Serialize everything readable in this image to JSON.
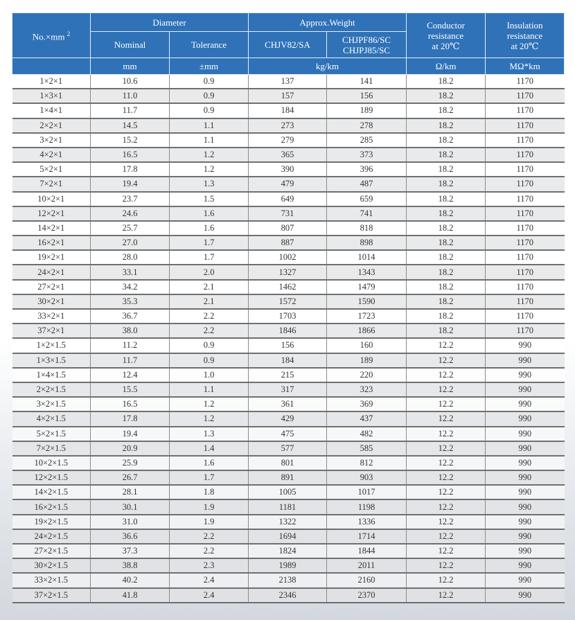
{
  "header": {
    "col_no": "No.×mm",
    "col_no_sup": "2",
    "diameter": "Diameter",
    "nominal": "Nominal",
    "tolerance": "Tolerance",
    "weight": "Approx.Weight",
    "weight_a": "CHJV82/SA",
    "weight_b_1": "CHJPF86/SC",
    "weight_b_2": "CHJPJ85/SC",
    "conductor_1": "Conductor",
    "conductor_2": "resistance",
    "conductor_3": "at 20℃",
    "insulation_1": "Insulation",
    "insulation_2": "resistance",
    "insulation_3": "at 20℃",
    "unit_nominal": "mm",
    "unit_tolerance": "±mm",
    "unit_weight": "kg/km",
    "unit_conductor": "Ω/km",
    "unit_insulation": "MΩ*km"
  },
  "colors": {
    "header_bg": "#2f72b8",
    "alt_row": "#e1e3e6"
  },
  "rows": [
    [
      "1×2×1",
      "10.6",
      "0.9",
      "137",
      "141",
      "18.2",
      "1170"
    ],
    [
      "1×3×1",
      "11.0",
      "0.9",
      "157",
      "156",
      "18.2",
      "1170"
    ],
    [
      "1×4×1",
      "11.7",
      "0.9",
      "184",
      "189",
      "18.2",
      "1170"
    ],
    [
      "2×2×1",
      "14.5",
      "1.1",
      "273",
      "278",
      "18.2",
      "1170"
    ],
    [
      "3×2×1",
      "15.2",
      "1.1",
      "279",
      "285",
      "18.2",
      "1170"
    ],
    [
      "4×2×1",
      "16.5",
      "1.2",
      "365",
      "373",
      "18.2",
      "1170"
    ],
    [
      "5×2×1",
      "17.8",
      "1.2",
      "390",
      "396",
      "18.2",
      "1170"
    ],
    [
      "7×2×1",
      "19.4",
      "1.3",
      "479",
      "487",
      "18.2",
      "1170"
    ],
    [
      "10×2×1",
      "23.7",
      "1.5",
      "649",
      "659",
      "18.2",
      "1170"
    ],
    [
      "12×2×1",
      "24.6",
      "1.6",
      "731",
      "741",
      "18.2",
      "1170"
    ],
    [
      "14×2×1",
      "25.7",
      "1.6",
      "807",
      "818",
      "18.2",
      "1170"
    ],
    [
      "16×2×1",
      "27.0",
      "1.7",
      "887",
      "898",
      "18.2",
      "1170"
    ],
    [
      "19×2×1",
      "28.0",
      "1.7",
      "1002",
      "1014",
      "18.2",
      "1170"
    ],
    [
      "24×2×1",
      "33.1",
      "2.0",
      "1327",
      "1343",
      "18.2",
      "1170"
    ],
    [
      "27×2×1",
      "34.2",
      "2.1",
      "1462",
      "1479",
      "18.2",
      "1170"
    ],
    [
      "30×2×1",
      "35.3",
      "2.1",
      "1572",
      "1590",
      "18.2",
      "1170"
    ],
    [
      "33×2×1",
      "36.7",
      "2.2",
      "1703",
      "1723",
      "18.2",
      "1170"
    ],
    [
      "37×2×1",
      "38.0",
      "2.2",
      "1846",
      "1866",
      "18.2",
      "1170"
    ],
    [
      "1×2×1.5",
      "11.2",
      "0.9",
      "156",
      "160",
      "12.2",
      "990"
    ],
    [
      "1×3×1.5",
      "11.7",
      "0.9",
      "184",
      "189",
      "12.2",
      "990"
    ],
    [
      "1×4×1.5",
      "12.4",
      "1.0",
      "215",
      "220",
      "12.2",
      "990"
    ],
    [
      "2×2×1.5",
      "15.5",
      "1.1",
      "317",
      "323",
      "12.2",
      "990"
    ],
    [
      "3×2×1.5",
      "16.5",
      "1.2",
      "361",
      "369",
      "12.2",
      "990"
    ],
    [
      "4×2×1.5",
      "17.8",
      "1.2",
      "429",
      "437",
      "12.2",
      "990"
    ],
    [
      "5×2×1.5",
      "19.4",
      "1.3",
      "475",
      "482",
      "12.2",
      "990"
    ],
    [
      "7×2×1.5",
      "20.9",
      "1.4",
      "577",
      "585",
      "12.2",
      "990"
    ],
    [
      "10×2×1.5",
      "25.9",
      "1.6",
      "801",
      "812",
      "12.2",
      "990"
    ],
    [
      "12×2×1.5",
      "26.7",
      "1.7",
      "891",
      "903",
      "12.2",
      "990"
    ],
    [
      "14×2×1.5",
      "28.1",
      "1.8",
      "1005",
      "1017",
      "12.2",
      "990"
    ],
    [
      "16×2×1.5",
      "30.1",
      "1.9",
      "1181",
      "1198",
      "12.2",
      "990"
    ],
    [
      "19×2×1.5",
      "31.0",
      "1.9",
      "1322",
      "1336",
      "12.2",
      "990"
    ],
    [
      "24×2×1.5",
      "36.6",
      "2.2",
      "1694",
      "1714",
      "12.2",
      "990"
    ],
    [
      "27×2×1.5",
      "37.3",
      "2.2",
      "1824",
      "1844",
      "12.2",
      "990"
    ],
    [
      "30×2×1.5",
      "38.8",
      "2.3",
      "1989",
      "2011",
      "12.2",
      "990"
    ],
    [
      "33×2×1.5",
      "40.2",
      "2.4",
      "2138",
      "2160",
      "12.2",
      "990"
    ],
    [
      "37×2×1.5",
      "41.8",
      "2.4",
      "2346",
      "2370",
      "12.2",
      "990"
    ]
  ]
}
